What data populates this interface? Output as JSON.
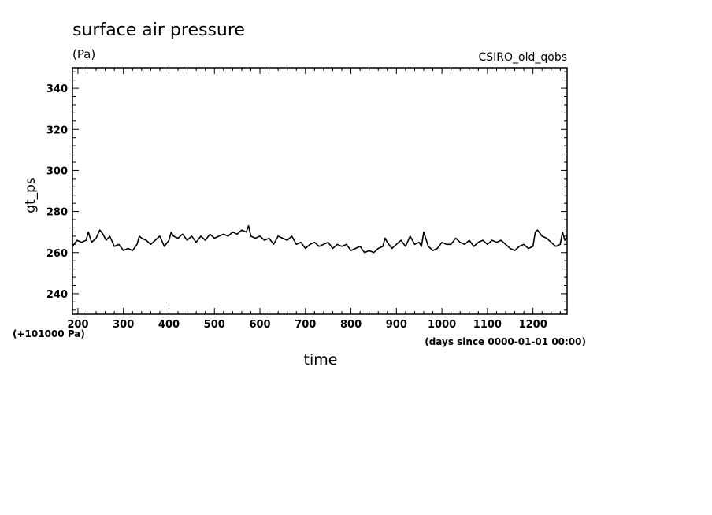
{
  "chart_data": {
    "type": "line",
    "title": "surface air pressure",
    "units": "(Pa)",
    "dataset": "CSIRO_old_qobs",
    "xlabel": "time",
    "xunits": "(days since 0000-01-01 00:00)",
    "ylabel": "gt_ps",
    "offset_label": "(+101000 Pa)",
    "xlim": [
      188,
      1275
    ],
    "ylim": [
      230,
      350
    ],
    "xticks": [
      "200",
      "300",
      "400",
      "500",
      "600",
      "700",
      "800",
      "900",
      "1000",
      "1100",
      "1200"
    ],
    "yticks": [
      "240",
      "260",
      "280",
      "300",
      "320",
      "340"
    ],
    "grid": false,
    "series": [
      {
        "x": [
          188,
          198,
          208,
          218,
          223,
          230,
          240,
          248,
          255,
          262,
          270,
          280,
          290,
          300,
          310,
          320,
          330,
          335,
          340,
          350,
          360,
          370,
          380,
          390,
          400,
          405,
          410,
          420,
          430,
          440,
          450,
          460,
          470,
          480,
          490,
          500,
          510,
          520,
          530,
          540,
          550,
          560,
          570,
          575,
          580,
          590,
          600,
          610,
          620,
          630,
          640,
          650,
          660,
          670,
          680,
          690,
          700,
          710,
          720,
          730,
          740,
          750,
          760,
          770,
          780,
          790,
          800,
          810,
          820,
          830,
          840,
          850,
          860,
          870,
          875,
          880,
          890,
          900,
          910,
          920,
          930,
          940,
          950,
          955,
          960,
          970,
          980,
          990,
          1000,
          1010,
          1020,
          1030,
          1040,
          1050,
          1060,
          1070,
          1080,
          1090,
          1100,
          1110,
          1120,
          1130,
          1140,
          1150,
          1160,
          1170,
          1180,
          1190,
          1200,
          1205,
          1210,
          1220,
          1230,
          1240,
          1250,
          1260,
          1265,
          1270,
          1275
        ],
        "y": [
          263,
          266,
          265,
          266,
          270,
          265,
          267,
          271,
          269,
          266,
          268,
          263,
          264,
          261,
          262,
          261,
          264,
          268,
          267,
          266,
          264,
          266,
          268,
          263,
          266,
          270,
          268,
          267,
          269,
          266,
          268,
          265,
          268,
          266,
          269,
          267,
          268,
          269,
          268,
          270,
          269,
          271,
          270,
          273,
          268,
          267,
          268,
          266,
          267,
          264,
          268,
          267,
          266,
          268,
          264,
          265,
          262,
          264,
          265,
          263,
          264,
          265,
          262,
          264,
          263,
          264,
          261,
          262,
          263,
          260,
          261,
          260,
          262,
          263,
          267,
          265,
          262,
          264,
          266,
          263,
          268,
          264,
          265,
          263,
          270,
          263,
          261,
          262,
          265,
          264,
          264,
          267,
          265,
          264,
          266,
          263,
          265,
          266,
          264,
          266,
          265,
          266,
          264,
          262,
          261,
          263,
          264,
          262,
          263,
          270,
          271,
          268,
          267,
          265,
          263,
          264,
          270,
          266,
          268
        ]
      }
    ]
  }
}
